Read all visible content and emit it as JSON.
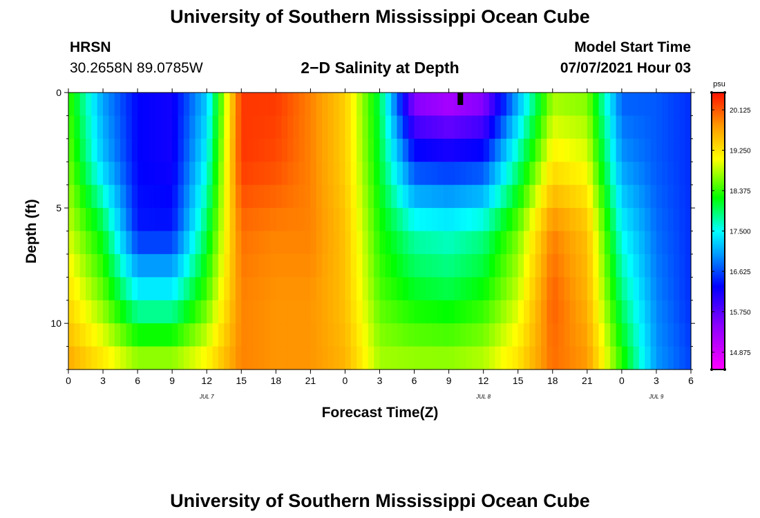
{
  "page": {
    "title_top": "University of Southern Mississippi Ocean Cube",
    "title_bottom": "University of Southern Mississippi Ocean Cube",
    "station": "HRSN",
    "coordinates": "30.2658N  89.0785W",
    "model_start_label": "Model Start Time",
    "model_start_value": "07/07/2021 Hour 03"
  },
  "chart_data": {
    "type": "heatmap",
    "title": "2−D Salinity at Depth",
    "xlabel": "Forecast Time(Z)",
    "ylabel": "Depth (ft)",
    "x_range_hours": [
      0,
      54
    ],
    "x_ticks": [
      {
        "h": 0,
        "label": "0"
      },
      {
        "h": 3,
        "label": "3"
      },
      {
        "h": 6,
        "label": "6"
      },
      {
        "h": 9,
        "label": "9"
      },
      {
        "h": 12,
        "label": "12"
      },
      {
        "h": 15,
        "label": "15"
      },
      {
        "h": 18,
        "label": "18"
      },
      {
        "h": 21,
        "label": "21"
      },
      {
        "h": 24,
        "label": "0"
      },
      {
        "h": 27,
        "label": "3"
      },
      {
        "h": 30,
        "label": "6"
      },
      {
        "h": 33,
        "label": "9"
      },
      {
        "h": 36,
        "label": "12"
      },
      {
        "h": 39,
        "label": "15"
      },
      {
        "h": 42,
        "label": "18"
      },
      {
        "h": 45,
        "label": "21"
      },
      {
        "h": 48,
        "label": "0"
      },
      {
        "h": 51,
        "label": "3"
      },
      {
        "h": 54,
        "label": "6"
      }
    ],
    "date_labels": [
      {
        "h": 12,
        "label": "JUL 7"
      },
      {
        "h": 36,
        "label": "JUL 8"
      },
      {
        "h": 51,
        "label": "JUL 9"
      }
    ],
    "y_range_ft": [
      0,
      12
    ],
    "y_ticks": [
      {
        "v": 0,
        "label": "0"
      },
      {
        "v": 5,
        "label": "5"
      },
      {
        "v": 10,
        "label": "10"
      }
    ],
    "colorbar": {
      "unit": "psu",
      "min": 14.5,
      "max": 20.5,
      "labels": [
        "20.125",
        "19.250",
        "18.375",
        "17.500",
        "16.625",
        "15.750",
        "14.875"
      ]
    },
    "marker_hour": 34,
    "salinity_psu": {
      "hours": [
        0,
        3,
        6,
        9,
        12,
        15,
        18,
        21,
        24,
        27,
        30,
        33,
        36,
        39,
        42,
        45,
        48,
        51,
        54
      ],
      "depths_ft": [
        0,
        3,
        6,
        9,
        12
      ],
      "values": [
        [
          18.4,
          17.0,
          16.3,
          16.2,
          17.2,
          20.3,
          20.3,
          19.9,
          19.4,
          18.0,
          15.3,
          15.0,
          15.3,
          17.0,
          18.7,
          18.6,
          16.7,
          16.7,
          16.5
        ],
        [
          18.6,
          17.2,
          16.3,
          16.2,
          17.5,
          20.3,
          20.2,
          19.9,
          19.4,
          18.1,
          16.5,
          16.4,
          16.5,
          17.8,
          19.2,
          19.0,
          17.0,
          16.7,
          16.5
        ],
        [
          18.9,
          18.1,
          16.4,
          16.4,
          18.0,
          20.0,
          19.9,
          19.9,
          19.5,
          18.3,
          17.7,
          17.6,
          17.8,
          18.6,
          19.9,
          19.5,
          17.5,
          16.8,
          16.5
        ],
        [
          19.3,
          18.6,
          17.6,
          17.6,
          18.5,
          19.9,
          19.8,
          19.8,
          19.5,
          18.5,
          18.2,
          18.1,
          18.3,
          18.9,
          20.1,
          19.6,
          17.9,
          16.9,
          16.5
        ],
        [
          19.7,
          19.3,
          18.9,
          18.9,
          19.2,
          19.9,
          19.8,
          19.8,
          19.6,
          18.8,
          18.8,
          18.8,
          18.9,
          19.3,
          20.0,
          19.8,
          18.4,
          17.0,
          16.6
        ]
      ]
    }
  }
}
